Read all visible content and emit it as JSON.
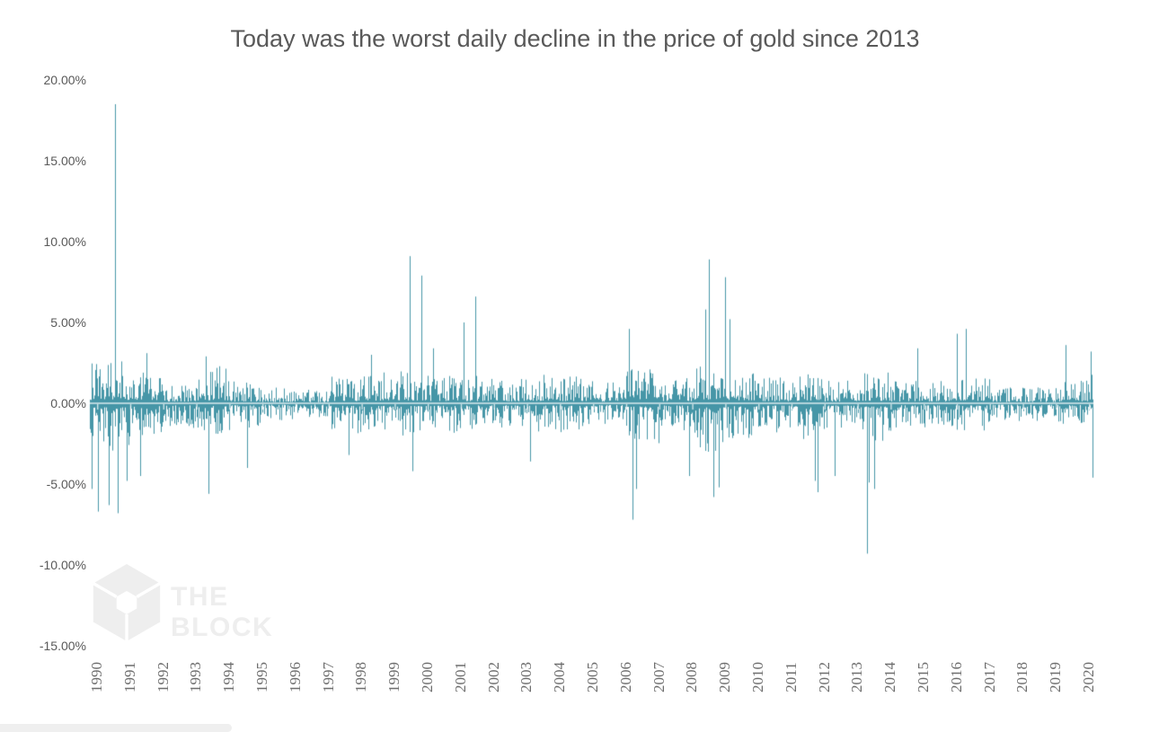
{
  "title": "Today was the worst daily decline in the price of gold since 2013",
  "watermark": {
    "line1": "THE",
    "line2": "BLOCK"
  },
  "chart_data": {
    "type": "bar",
    "title": "Today was the worst daily decline in the price of gold since 2013",
    "description": "Daily percent change in the price of gold, 1990 to 2020, rendered as dense vertical bars around a zero axis",
    "unit": "%",
    "xlabel": "",
    "ylabel": "",
    "ylim": [
      -15,
      20
    ],
    "x_range": [
      1989.82,
      2020.15
    ],
    "grid": false,
    "legend": false,
    "bar_color": "#4696a7",
    "axis_line_color": "#e3e3e3",
    "ytick_values": [
      20,
      15,
      10,
      5,
      0,
      -5,
      -10,
      -15
    ],
    "ytick_labels": [
      "20.00%",
      "15.00%",
      "10.00%",
      "5.00%",
      "0.00%",
      "-5.00%",
      "-10.00%",
      "-15.00%"
    ],
    "xtick_labels": [
      "1990",
      "1991",
      "1992",
      "1993",
      "1994",
      "1995",
      "1996",
      "1997",
      "1998",
      "1999",
      "2000",
      "2001",
      "2002",
      "2003",
      "2004",
      "2005",
      "2006",
      "2007",
      "2008",
      "2009",
      "2010",
      "2011",
      "2012",
      "2013",
      "2014",
      "2015",
      "2016",
      "2017",
      "2018",
      "2019",
      "2020"
    ],
    "volatility_by_year": [
      {
        "year": 1990,
        "up": 2.6,
        "down": 3.0
      },
      {
        "year": 1991,
        "up": 2.0,
        "down": 2.2
      },
      {
        "year": 1992,
        "up": 1.4,
        "down": 1.6
      },
      {
        "year": 1993,
        "up": 2.3,
        "down": 2.1
      },
      {
        "year": 1994,
        "up": 1.4,
        "down": 1.5
      },
      {
        "year": 1995,
        "up": 1.0,
        "down": 1.1
      },
      {
        "year": 1996,
        "up": 0.85,
        "down": 0.95
      },
      {
        "year": 1997,
        "up": 1.7,
        "down": 1.9
      },
      {
        "year": 1998,
        "up": 2.0,
        "down": 2.0
      },
      {
        "year": 1999,
        "up": 2.2,
        "down": 2.1
      },
      {
        "year": 2000,
        "up": 1.8,
        "down": 1.9
      },
      {
        "year": 2001,
        "up": 1.7,
        "down": 1.6
      },
      {
        "year": 2002,
        "up": 1.5,
        "down": 1.5
      },
      {
        "year": 2003,
        "up": 1.9,
        "down": 1.8
      },
      {
        "year": 2004,
        "up": 1.7,
        "down": 1.9
      },
      {
        "year": 2005,
        "up": 1.3,
        "down": 1.3
      },
      {
        "year": 2006,
        "up": 2.3,
        "down": 2.5
      },
      {
        "year": 2007,
        "up": 1.6,
        "down": 1.7
      },
      {
        "year": 2008,
        "up": 2.9,
        "down": 3.2
      },
      {
        "year": 2009,
        "up": 2.3,
        "down": 2.2
      },
      {
        "year": 2010,
        "up": 1.6,
        "down": 1.8
      },
      {
        "year": 2011,
        "up": 1.9,
        "down": 2.3
      },
      {
        "year": 2012,
        "up": 1.4,
        "down": 1.7
      },
      {
        "year": 2013,
        "up": 1.9,
        "down": 2.5
      },
      {
        "year": 2014,
        "up": 1.4,
        "down": 1.5
      },
      {
        "year": 2015,
        "up": 1.4,
        "down": 1.6
      },
      {
        "year": 2016,
        "up": 1.7,
        "down": 1.7
      },
      {
        "year": 2017,
        "up": 1.0,
        "down": 1.1
      },
      {
        "year": 2018,
        "up": 1.0,
        "down": 1.1
      },
      {
        "year": 2019,
        "up": 1.4,
        "down": 1.3
      },
      {
        "year": 2020,
        "up": 1.8,
        "down": 1.5
      }
    ],
    "notable_points": [
      {
        "x": 1989.84,
        "change": -5.3
      },
      {
        "x": 1990.02,
        "change": -6.7
      },
      {
        "x": 1990.36,
        "change": -6.3
      },
      {
        "x": 1990.54,
        "change": 18.5
      },
      {
        "x": 1990.63,
        "change": -6.8
      },
      {
        "x": 1990.9,
        "change": -4.8
      },
      {
        "x": 1991.3,
        "change": -4.5
      },
      {
        "x": 1991.5,
        "change": 3.1
      },
      {
        "x": 1993.3,
        "change": 2.9
      },
      {
        "x": 1993.37,
        "change": -5.6
      },
      {
        "x": 1994.55,
        "change": -4.0
      },
      {
        "x": 1997.6,
        "change": -3.2
      },
      {
        "x": 1998.3,
        "change": 3.0
      },
      {
        "x": 1999.45,
        "change": 9.1
      },
      {
        "x": 1999.55,
        "change": -4.2
      },
      {
        "x": 1999.8,
        "change": 7.9
      },
      {
        "x": 2000.15,
        "change": 3.4
      },
      {
        "x": 2001.1,
        "change": 5.0
      },
      {
        "x": 2001.43,
        "change": 6.6
      },
      {
        "x": 2003.1,
        "change": -3.6
      },
      {
        "x": 2006.1,
        "change": 4.6
      },
      {
        "x": 2006.2,
        "change": -7.2
      },
      {
        "x": 2006.3,
        "change": -5.3
      },
      {
        "x": 2007.9,
        "change": -4.5
      },
      {
        "x": 2008.4,
        "change": 5.8
      },
      {
        "x": 2008.5,
        "change": 8.9
      },
      {
        "x": 2008.63,
        "change": -5.8
      },
      {
        "x": 2008.8,
        "change": -5.2
      },
      {
        "x": 2009.0,
        "change": 7.8
      },
      {
        "x": 2009.12,
        "change": 5.2
      },
      {
        "x": 2011.7,
        "change": -4.8
      },
      {
        "x": 2011.78,
        "change": -5.5
      },
      {
        "x": 2012.3,
        "change": -4.5
      },
      {
        "x": 2013.28,
        "change": -9.3
      },
      {
        "x": 2013.33,
        "change": -4.9
      },
      {
        "x": 2013.5,
        "change": -5.3
      },
      {
        "x": 2014.8,
        "change": 3.4
      },
      {
        "x": 2016.0,
        "change": 4.3
      },
      {
        "x": 2016.27,
        "change": 4.6
      },
      {
        "x": 2019.3,
        "change": 3.6
      },
      {
        "x": 2020.05,
        "change": 3.2
      },
      {
        "x": 2020.12,
        "change": -4.6,
        "note": "worst daily decline since 2013"
      }
    ]
  }
}
